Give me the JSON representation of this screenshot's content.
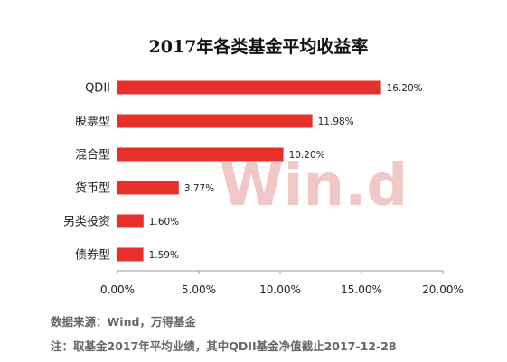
{
  "chart_data": {
    "type": "bar",
    "orientation": "horizontal",
    "title": "2017年各类基金平均收益率",
    "categories": [
      "QDII",
      "股票型",
      "混合型",
      "货币型",
      "另类投资",
      "债券型"
    ],
    "values": [
      16.2,
      11.98,
      10.2,
      3.77,
      1.6,
      1.59
    ],
    "value_labels": [
      "16.20%",
      "11.98%",
      "10.20%",
      "3.77%",
      "1.60%",
      "1.59%"
    ],
    "xlim": [
      0,
      20
    ],
    "x_ticks": [
      0,
      5,
      10,
      15,
      20
    ],
    "x_tick_labels": [
      "0.00%",
      "5.00%",
      "10.00%",
      "15.00%",
      "20.00%"
    ],
    "xlabel": "",
    "ylabel": "",
    "grid": false,
    "legend": "none",
    "bar_color": "#e8302a",
    "watermark": "Win.d"
  },
  "notes": {
    "source": "数据来源：Wind，万得基金",
    "footnote": "注：取基金2017年平均业绩，其中QDII基金净值截止2017-12-28"
  }
}
